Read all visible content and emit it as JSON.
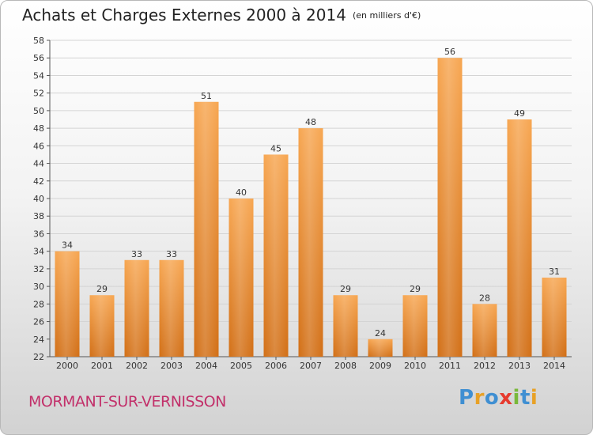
{
  "title": "Achats et Charges Externes 2000 à 2014",
  "unit_note": "(en milliers d'€)",
  "location": "MORMANT-SUR-VERNISSON",
  "logo": {
    "text": "Proxiti",
    "letters": [
      {
        "ch": "P",
        "color": "#3f8fd2"
      },
      {
        "ch": "r",
        "color": "#e8a126"
      },
      {
        "ch": "o",
        "color": "#3f8fd2"
      },
      {
        "ch": "x",
        "color": "#e63a2e"
      },
      {
        "ch": "i",
        "color": "#79b83a"
      },
      {
        "ch": "t",
        "color": "#3f8fd2"
      },
      {
        "ch": "i",
        "color": "#e8a126"
      }
    ]
  },
  "colors": {
    "bar_top": "#f7a651",
    "bar_bottom": "#d26f16",
    "grid": "#d4d4d4",
    "axis": "#555555"
  },
  "chart_data": {
    "type": "bar",
    "categories": [
      "2000",
      "2001",
      "2002",
      "2003",
      "2004",
      "2005",
      "2006",
      "2007",
      "2008",
      "2009",
      "2010",
      "2011",
      "2012",
      "2013",
      "2014"
    ],
    "values": [
      34,
      29,
      33,
      33,
      51,
      40,
      45,
      48,
      29,
      24,
      29,
      56,
      28,
      49,
      31
    ],
    "ylim": [
      22,
      58
    ],
    "ytick_step": 2,
    "grid": true,
    "xlabel": "",
    "ylabel": ""
  }
}
